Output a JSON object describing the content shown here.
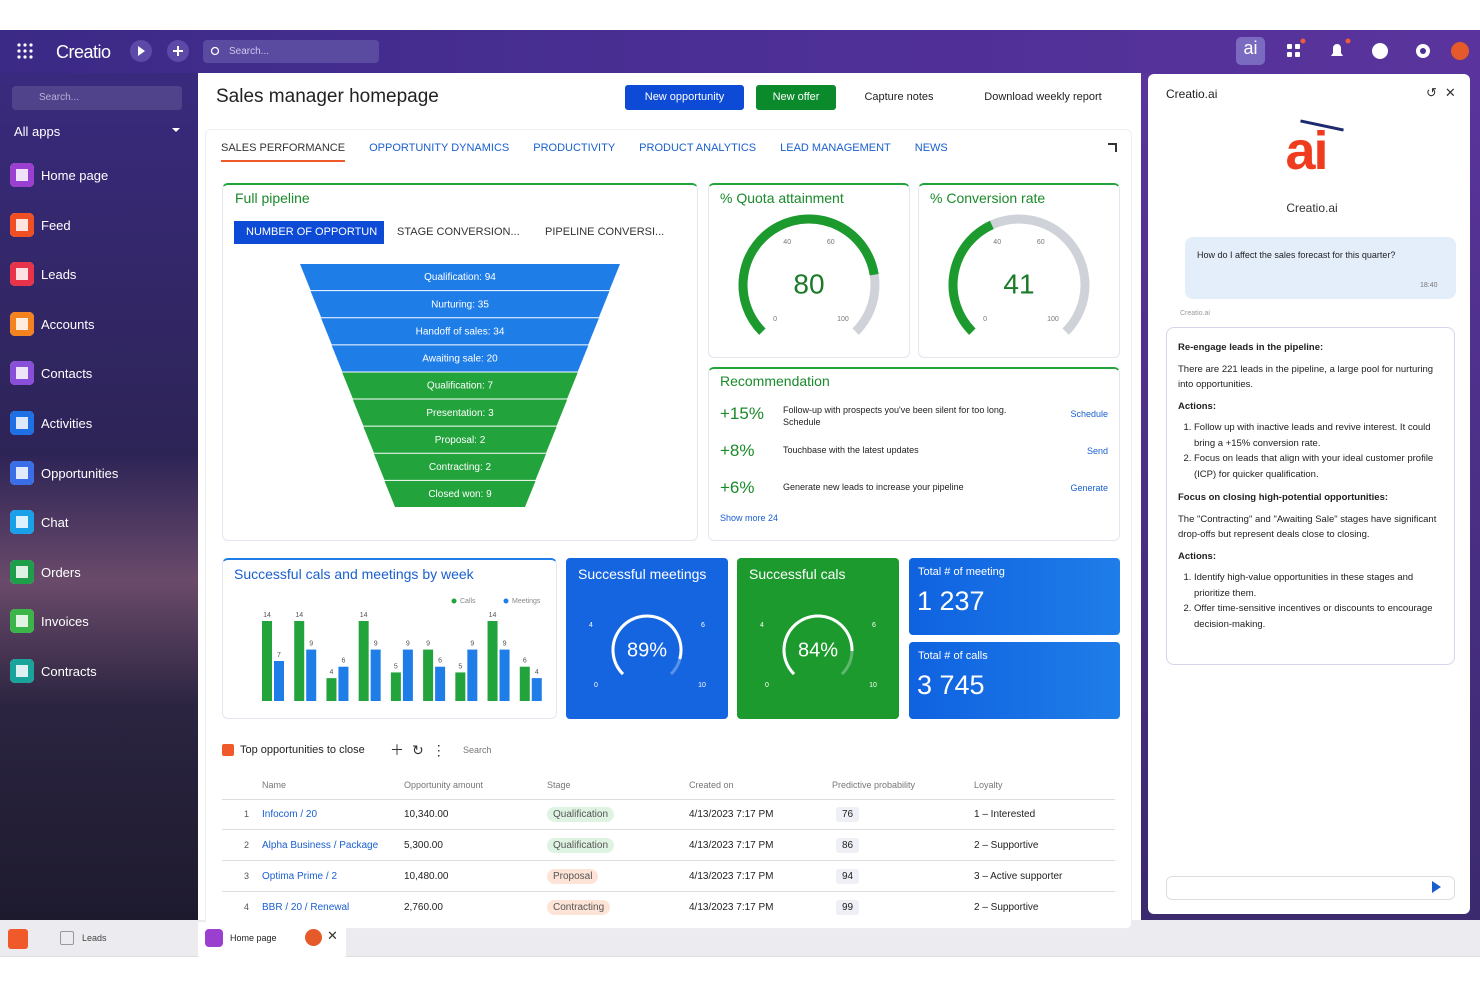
{
  "header": {
    "brand": "Creatio",
    "search": "Search...",
    "ai_button": "ai"
  },
  "sidebar": {
    "search": "Search...",
    "apps_label": "All apps",
    "items": [
      {
        "label": "Home page",
        "color": "#9b3fd1"
      },
      {
        "label": "Feed",
        "color": "#f04e23"
      },
      {
        "label": "Leads",
        "color": "#e8334a"
      },
      {
        "label": "Accounts",
        "color": "#f58220"
      },
      {
        "label": "Contacts",
        "color": "#8a4fd8"
      },
      {
        "label": "Activities",
        "color": "#1f6fe5"
      },
      {
        "label": "Opportunities",
        "color": "#3a6ee8"
      },
      {
        "label": "Chat",
        "color": "#1aa0e8"
      },
      {
        "label": "Orders",
        "color": "#1e9e4a"
      },
      {
        "label": "Invoices",
        "color": "#3bb54a"
      },
      {
        "label": "Contracts",
        "color": "#19a39a"
      }
    ]
  },
  "page": {
    "title": "Sales manager homepage",
    "buttons": [
      "New opportunity",
      "New offer",
      "Capture notes",
      "Download weekly report"
    ],
    "tabs": [
      "SALES PERFORMANCE",
      "OPPORTUNITY DYNAMICS",
      "PRODUCTIVITY",
      "PRODUCT ANALYTICS",
      "LEAD MANAGEMENT",
      "NEWS"
    ]
  },
  "pipeline": {
    "title": "Full pipeline",
    "tabs": [
      "NUMBER OF OPPORTUN",
      "STAGE CONVERSION...",
      "PIPELINE CONVERSI..."
    ],
    "stages": [
      {
        "label": "Qualification: 94",
        "color": "#1f7de8"
      },
      {
        "label": "Nurturing: 35",
        "color": "#1f7de8"
      },
      {
        "label": "Handoff of sales: 34",
        "color": "#1f7de8"
      },
      {
        "label": "Awaiting sale: 20",
        "color": "#1f7de8"
      },
      {
        "label": "Qualification: 7",
        "color": "#22a33c"
      },
      {
        "label": "Presentation: 3",
        "color": "#22a33c"
      },
      {
        "label": "Proposal: 2",
        "color": "#22a33c"
      },
      {
        "label": "Contracting: 2",
        "color": "#22a33c"
      },
      {
        "label": "Closed won: 9",
        "color": "#22a33c"
      }
    ]
  },
  "gauges": [
    {
      "title": "% Quota attainment",
      "value": 80,
      "ticks": [
        0,
        40,
        60,
        100
      ]
    },
    {
      "title": "% Conversion rate",
      "value": 41,
      "ticks": [
        0,
        40,
        60,
        100
      ]
    }
  ],
  "recommendation": {
    "title": "Recommendation",
    "items": [
      {
        "change": "+15%",
        "text": "Follow-up with prospects you've been silent for too long. Schedule",
        "action": "Schedule"
      },
      {
        "change": "+8%",
        "text": "Touchbase with the latest updates",
        "action": "Send"
      },
      {
        "change": "+6%",
        "text": "Generate new leads to increase your pipeline",
        "action": "Generate"
      }
    ],
    "more": "Show more 24"
  },
  "chart_data": {
    "type": "bar",
    "title": "Successful cals and meetings by week",
    "series": [
      {
        "name": "Calls",
        "color": "#22a33c",
        "values": [
          14,
          14,
          4,
          14,
          5,
          9,
          5,
          14,
          6
        ]
      },
      {
        "name": "Meetings",
        "color": "#1f7de8",
        "values": [
          7,
          9,
          6,
          9,
          9,
          6,
          9,
          9,
          4
        ]
      }
    ]
  },
  "tiles": [
    {
      "title": "Successful meetings",
      "value": 89,
      "value_label": "89%",
      "color": "#1565e0",
      "scale_labels": [
        "0",
        "4",
        "6",
        "10"
      ]
    },
    {
      "title": "Successful cals",
      "value": 84,
      "value_label": "84%",
      "color": "#1c9a2e",
      "scale_labels": [
        "0",
        "4",
        "6",
        "10"
      ]
    }
  ],
  "totals": [
    {
      "title": "Total # of meeting",
      "value": 1237,
      "value_label": "1 237"
    },
    {
      "title": "Total # of calls",
      "value": 3745,
      "value_label": "3 745"
    }
  ],
  "table": {
    "title": "Top opportunities to close",
    "search": "Search",
    "columns": [
      "Name",
      "Opportunity amount",
      "Stage",
      "Created on",
      "Predictive probability",
      "Loyalty"
    ],
    "rows": [
      {
        "num": "1",
        "name": "Infocom / 20",
        "amount": "10,340.00",
        "stage": "Qualification",
        "stage_color": "#dff3e2",
        "created": "4/13/2023 7:17 PM",
        "probability": "76",
        "loyalty": "1 – Interested"
      },
      {
        "num": "2",
        "name": "Alpha Business / Package",
        "amount": "5,300.00",
        "stage": "Qualification",
        "stage_color": "#dff3e2",
        "created": "4/13/2023 7:17 PM",
        "probability": "86",
        "loyalty": "2 – Supportive"
      },
      {
        "num": "3",
        "name": "Optima Prime / 2",
        "amount": "10,480.00",
        "stage": "Proposal",
        "stage_color": "#fde4d6",
        "created": "4/13/2023 7:17 PM",
        "probability": "94",
        "loyalty": "3 – Active supporter"
      },
      {
        "num": "4",
        "name": "BBR  / 20 / Renewal",
        "amount": "2,760.00",
        "stage": "Contracting",
        "stage_color": "#fde4d6",
        "created": "4/13/2023 7:17 PM",
        "probability": "99",
        "loyalty": "2 – Supportive"
      }
    ]
  },
  "ai": {
    "title": "Creatio.ai",
    "logo": "ai",
    "logo_name": "Creatio.ai",
    "question": "How do I affect the sales forecast for this quarter?",
    "time": "18:40",
    "bot": "Creatio.ai",
    "answer": [
      {
        "kind": "h",
        "text": "Re-engage leads in the pipeline:"
      },
      {
        "kind": "p",
        "text": "There are 221 leads in the pipeline, a large pool for nurturing into opportunities."
      },
      {
        "kind": "h",
        "text": "Actions:"
      },
      {
        "kind": "ol",
        "items": [
          "Follow up with inactive leads and revive interest. It could bring a +15% conversion rate.",
          "Focus on leads that align with your ideal customer profile (ICP) for quicker qualification."
        ]
      },
      {
        "kind": "h",
        "text": "Focus on closing high-potential opportunities:"
      },
      {
        "kind": "p",
        "text": "The \"Contracting\" and \"Awaiting Sale\" stages have significant drop-offs but represent deals close to closing."
      },
      {
        "kind": "h",
        "text": "Actions:"
      },
      {
        "kind": "ol",
        "items": [
          "Identify high-value opportunities in these stages and prioritize them.",
          "Offer time-sensitive incentives or discounts to encourage decision-making."
        ]
      }
    ]
  },
  "taskbar": {
    "tabs": [
      "Leads",
      "Home page"
    ]
  }
}
